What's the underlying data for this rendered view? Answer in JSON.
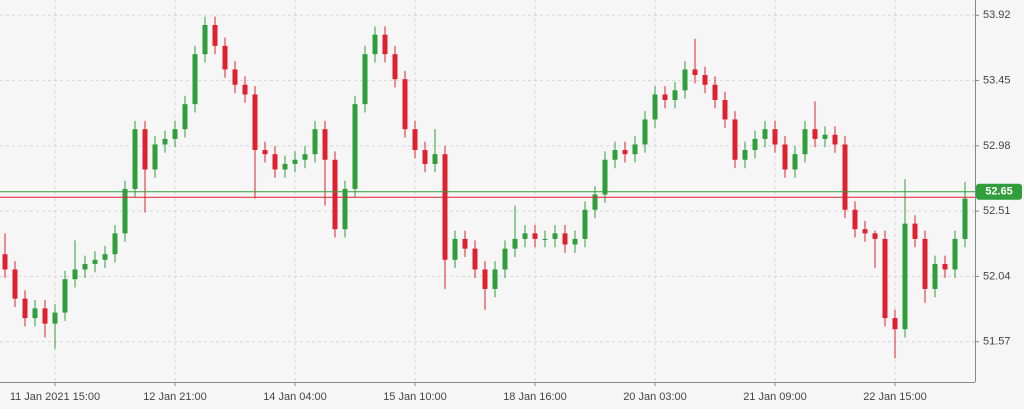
{
  "chart_data": {
    "type": "candlestick",
    "categories": [
      null,
      null,
      null,
      null,
      null,
      "11 Jan 2021 15:00",
      null,
      null,
      null,
      null,
      null,
      null,
      null,
      null,
      null,
      null,
      null,
      "12 Jan 21:00",
      null,
      null,
      null,
      null,
      null,
      null,
      null,
      null,
      null,
      null,
      null,
      "14 Jan 04:00",
      null,
      null,
      null,
      null,
      null,
      null,
      null,
      null,
      null,
      null,
      null,
      "15 Jan 10:00",
      null,
      null,
      null,
      null,
      null,
      null,
      null,
      null,
      null,
      null,
      null,
      "18 Jan 16:00",
      null,
      null,
      null,
      null,
      null,
      null,
      null,
      null,
      null,
      null,
      null,
      "20 Jan 03:00",
      null,
      null,
      null,
      null,
      null,
      null,
      null,
      null,
      null,
      null,
      null,
      "21 Jan 09:00",
      null,
      null,
      null,
      null,
      null,
      null,
      null,
      null,
      null,
      null,
      null,
      "22 Jan 15:00",
      null,
      null,
      null,
      null,
      null,
      null,
      null
    ],
    "open": [
      52.2,
      52.09,
      51.88,
      51.74,
      51.81,
      51.7,
      51.78,
      52.02,
      52.09,
      52.13,
      52.16,
      52.2,
      52.35,
      52.67,
      53.1,
      52.81,
      52.99,
      53.03,
      53.1,
      53.28,
      53.64,
      53.85,
      53.7,
      53.53,
      53.42,
      53.35,
      52.95,
      52.92,
      52.81,
      52.85,
      52.88,
      52.92,
      53.1,
      52.88,
      52.38,
      52.67,
      53.28,
      53.64,
      53.78,
      53.64,
      53.46,
      53.1,
      52.95,
      52.85,
      52.92,
      52.16,
      52.31,
      52.24,
      52.09,
      51.95,
      52.09,
      52.24,
      52.31,
      52.35,
      52.31,
      52.31,
      52.35,
      52.27,
      52.31,
      52.52,
      52.63,
      52.88,
      52.95,
      52.92,
      52.99,
      53.17,
      53.35,
      53.31,
      53.38,
      53.53,
      53.49,
      53.42,
      53.31,
      53.17,
      52.88,
      52.95,
      53.03,
      53.1,
      52.99,
      52.81,
      52.92,
      53.1,
      53.03,
      53.06,
      52.99,
      52.52,
      52.38,
      52.35,
      52.31,
      51.74,
      51.66,
      52.42,
      52.31,
      51.95,
      52.13,
      52.09,
      52.31
    ],
    "high": [
      52.35,
      52.15,
      51.94,
      51.87,
      51.87,
      51.84,
      52.08,
      52.3,
      52.19,
      52.22,
      52.26,
      52.41,
      52.73,
      53.16,
      53.16,
      53.05,
      53.09,
      53.16,
      53.34,
      53.7,
      53.91,
      53.91,
      53.76,
      53.59,
      53.48,
      53.41,
      53.01,
      52.98,
      52.91,
      52.94,
      52.98,
      53.16,
      53.16,
      52.94,
      52.73,
      53.34,
      53.7,
      53.84,
      53.84,
      53.7,
      53.52,
      53.16,
      53.01,
      53.1,
      52.98,
      52.37,
      52.37,
      52.3,
      52.15,
      52.15,
      52.3,
      52.55,
      52.41,
      52.41,
      52.37,
      52.41,
      52.41,
      52.37,
      52.58,
      52.69,
      52.94,
      53.01,
      53.01,
      53.05,
      53.23,
      53.41,
      53.41,
      53.44,
      53.59,
      53.75,
      53.55,
      53.48,
      53.37,
      53.23,
      53.01,
      53.09,
      53.16,
      53.16,
      53.05,
      52.98,
      53.16,
      53.3,
      53.12,
      53.12,
      53.05,
      52.58,
      52.44,
      52.37,
      52.37,
      51.8,
      52.74,
      52.48,
      52.37,
      52.19,
      52.19,
      52.37,
      52.72
    ],
    "low": [
      52.03,
      51.82,
      51.68,
      51.68,
      51.6,
      51.52,
      51.72,
      51.96,
      52.03,
      52.07,
      52.1,
      52.14,
      52.29,
      52.61,
      52.5,
      52.75,
      52.93,
      52.97,
      53.04,
      53.22,
      53.58,
      53.64,
      53.47,
      53.36,
      53.29,
      52.6,
      52.86,
      52.75,
      52.75,
      52.79,
      52.82,
      52.86,
      52.55,
      52.32,
      52.32,
      52.61,
      53.22,
      53.58,
      53.58,
      53.4,
      53.04,
      52.89,
      52.79,
      52.79,
      51.95,
      52.1,
      52.18,
      52.03,
      51.8,
      51.89,
      52.03,
      52.18,
      52.25,
      52.25,
      52.25,
      52.25,
      52.21,
      52.21,
      52.25,
      52.46,
      52.57,
      52.82,
      52.86,
      52.86,
      52.93,
      53.11,
      53.25,
      53.25,
      53.32,
      53.43,
      53.36,
      53.25,
      53.11,
      52.82,
      52.82,
      52.89,
      52.97,
      52.93,
      52.75,
      52.75,
      52.86,
      52.97,
      52.97,
      52.93,
      52.46,
      52.32,
      52.29,
      52.1,
      51.68,
      51.45,
      51.6,
      52.25,
      51.85,
      51.89,
      52.03,
      52.03,
      52.25
    ],
    "close": [
      52.09,
      51.88,
      51.74,
      51.81,
      51.7,
      51.78,
      52.02,
      52.09,
      52.13,
      52.16,
      52.2,
      52.35,
      52.67,
      53.1,
      52.81,
      52.99,
      53.03,
      53.1,
      53.28,
      53.64,
      53.85,
      53.7,
      53.53,
      53.42,
      53.35,
      52.95,
      52.92,
      52.81,
      52.85,
      52.88,
      52.92,
      53.1,
      52.88,
      52.38,
      52.67,
      53.28,
      53.64,
      53.78,
      53.64,
      53.46,
      53.1,
      52.95,
      52.85,
      52.92,
      52.16,
      52.31,
      52.24,
      52.09,
      51.95,
      52.09,
      52.24,
      52.31,
      52.35,
      52.31,
      52.31,
      52.35,
      52.27,
      52.31,
      52.52,
      52.63,
      52.88,
      52.95,
      52.92,
      52.99,
      53.17,
      53.35,
      53.31,
      53.38,
      53.53,
      53.49,
      53.42,
      53.31,
      53.17,
      52.88,
      52.95,
      53.03,
      53.1,
      52.99,
      52.81,
      52.92,
      53.1,
      53.03,
      53.06,
      52.99,
      52.52,
      52.38,
      52.35,
      52.31,
      51.74,
      51.66,
      52.42,
      52.31,
      51.95,
      52.13,
      52.09,
      52.31,
      52.6
    ],
    "up_color": "#2f9e3b",
    "down_color": "#e0202f",
    "ylim": [
      51.28,
      54.03
    ],
    "yticks": [
      51.57,
      52.04,
      52.51,
      52.98,
      53.45,
      53.92
    ],
    "grid": true,
    "price_lines": [
      {
        "value": 52.65,
        "color": "#2f9e3b",
        "labeled": true
      },
      {
        "value": 52.61,
        "color": "#e0202f",
        "labeled": false
      }
    ]
  }
}
